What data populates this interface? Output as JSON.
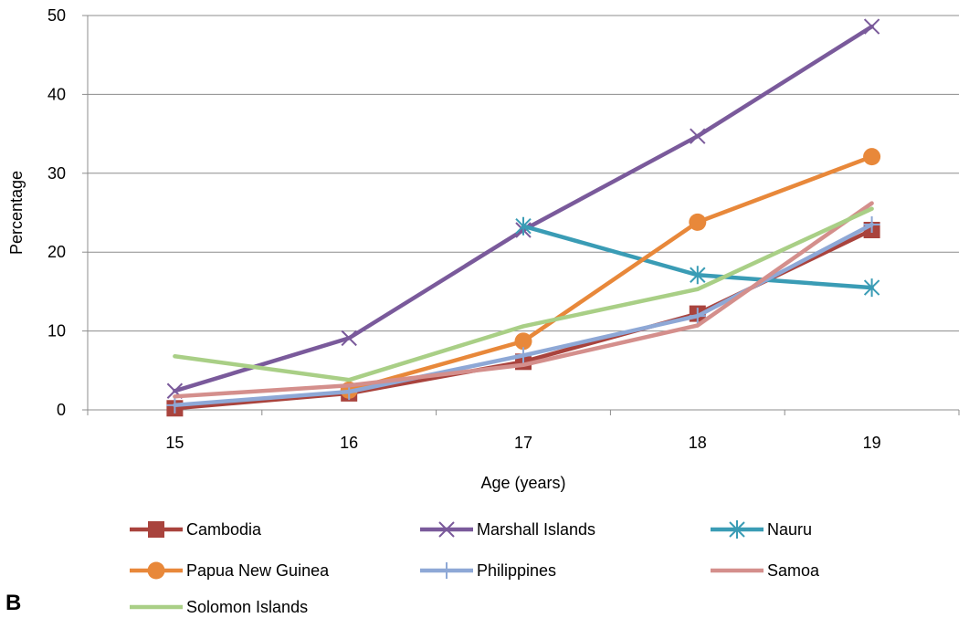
{
  "panel_label": "B",
  "chart_data": {
    "type": "line",
    "title": "",
    "xlabel": "Age (years)",
    "ylabel": "Percentage",
    "x": [
      15,
      16,
      17,
      18,
      19
    ],
    "x_tick_labels": [
      "15",
      "16",
      "17",
      "18",
      "19"
    ],
    "ylim": [
      0,
      50
    ],
    "y_ticks": [
      0,
      10,
      20,
      30,
      40,
      50
    ],
    "y_tick_labels": [
      "0",
      "10",
      "20",
      "30",
      "40",
      "50"
    ],
    "grid": "horizontal",
    "legend_position": "bottom",
    "series": [
      {
        "name": "Cambodia",
        "color": "#a9433d",
        "marker": "square",
        "values": [
          0.2,
          2.1,
          6.1,
          12.2,
          22.8
        ]
      },
      {
        "name": "Marshall Islands",
        "color": "#7a5a9b",
        "marker": "x",
        "values": [
          2.4,
          9.1,
          22.8,
          34.7,
          48.6
        ]
      },
      {
        "name": "Nauru",
        "color": "#3a9cb5",
        "marker": "asterisk",
        "values": [
          null,
          null,
          23.3,
          17.1,
          15.5
        ]
      },
      {
        "name": "Papua New Guinea",
        "color": "#e8883a",
        "marker": "circle",
        "values": [
          null,
          2.5,
          8.7,
          23.8,
          32.1
        ]
      },
      {
        "name": "Philippines",
        "color": "#8ea8d6",
        "marker": "plus",
        "values": [
          0.6,
          2.3,
          6.9,
          11.9,
          23.5
        ]
      },
      {
        "name": "Samoa",
        "color": "#d48f8c",
        "marker": "none",
        "values": [
          1.7,
          3.1,
          5.7,
          10.7,
          26.2
        ]
      },
      {
        "name": "Solomon Islands",
        "color": "#a9cf86",
        "marker": "none",
        "values": [
          6.8,
          3.8,
          10.6,
          15.3,
          25.5
        ]
      }
    ]
  }
}
